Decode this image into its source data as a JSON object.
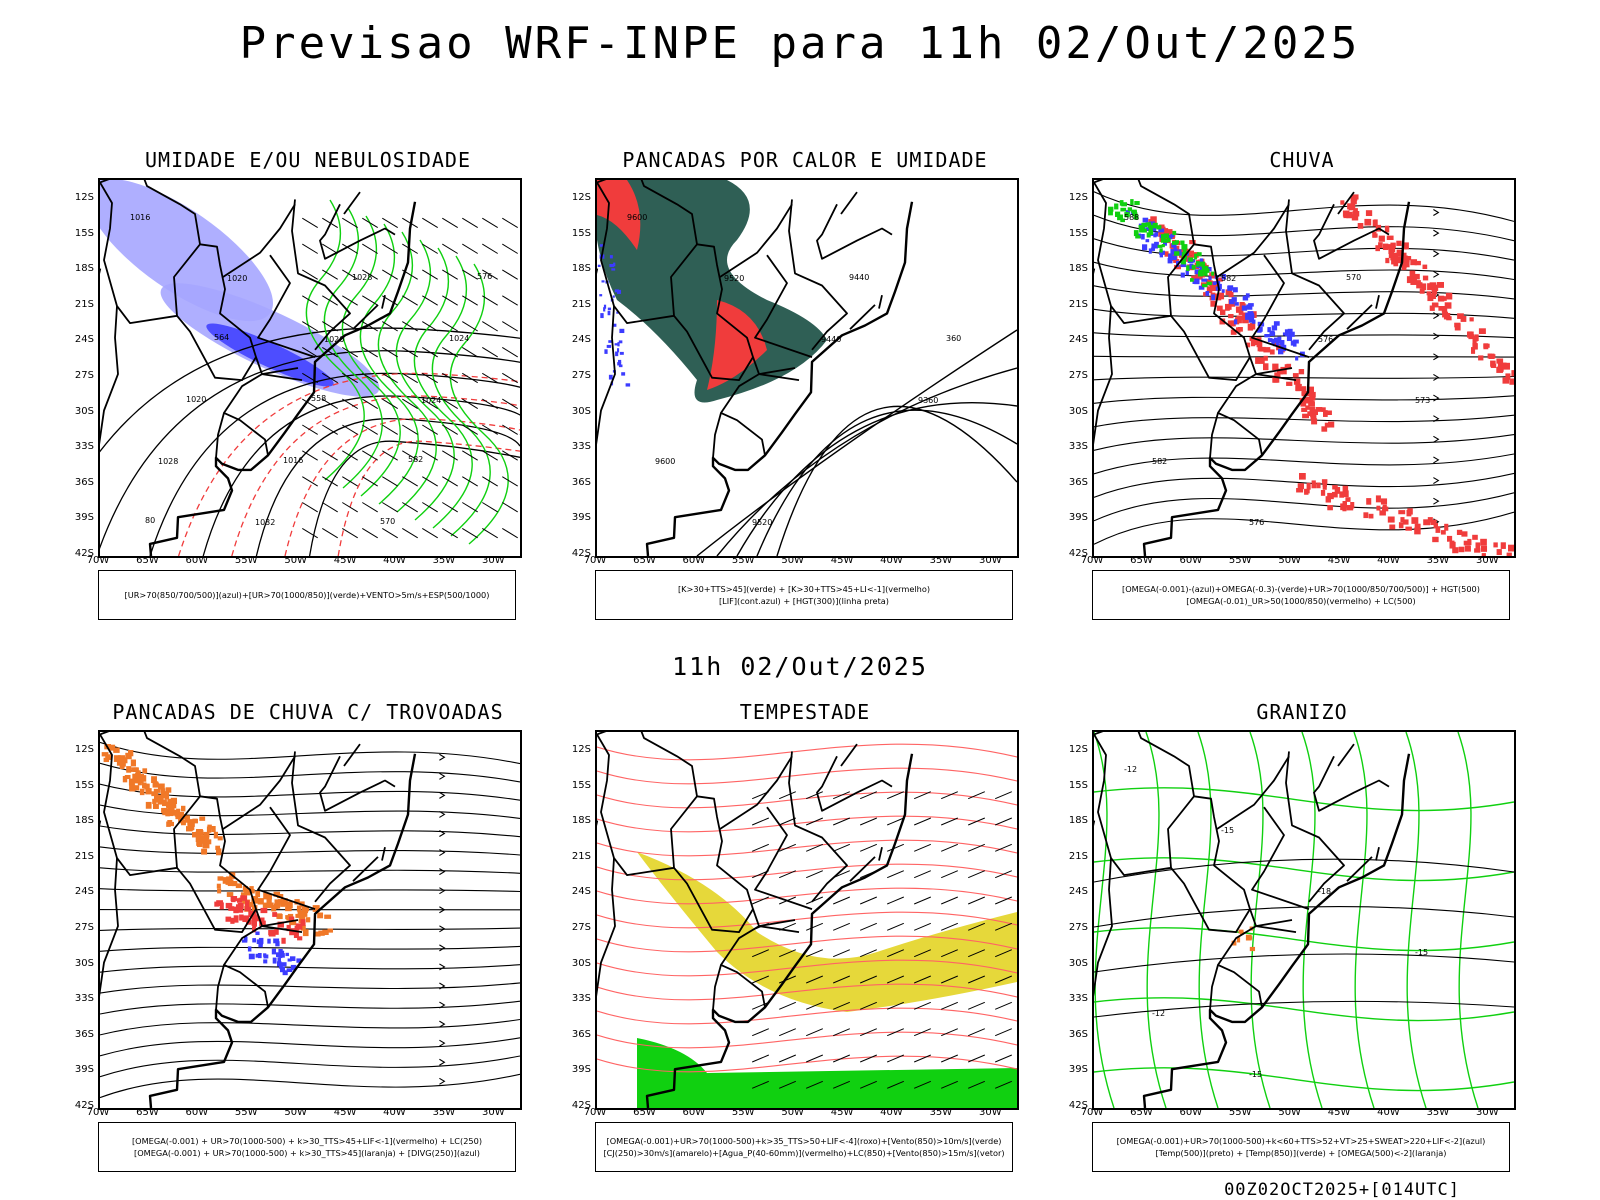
{
  "main_title": "Previsao WRF-INPE  para 11h 02/Out/2025",
  "mid_title": "11h 02/Out/2025",
  "footer": "00Z02OCT2025+[014UTC]",
  "lat_labels": [
    "12S",
    "15S",
    "18S",
    "21S",
    "24S",
    "27S",
    "30S",
    "33S",
    "36S",
    "39S",
    "42S"
  ],
  "lon_labels": [
    "70W",
    "65W",
    "60W",
    "55W",
    "50W",
    "45W",
    "40W",
    "35W",
    "30W"
  ],
  "colors": {
    "red": "#f03c3c",
    "blue": "#3c3cff",
    "green": "#10d010",
    "lightblue": "#a6a6ff",
    "darkteal": "#2f5f55",
    "orange": "#f07828",
    "yellow": "#e6d83a",
    "pink": "#ff6464"
  },
  "chart_data": [
    {
      "type": "map",
      "id": "umidade",
      "title": "UMIDADE E/OU NEBULOSIDADE",
      "legend": [
        "[UR>70(850/700/500)](azul)+[UR>70(1000/850)](verde)+VENTO>5m/s+ESP(500/1000)"
      ],
      "contour_labels": [
        "1016",
        "1020",
        "1020",
        "1024",
        "1028",
        "1032",
        "1028",
        "1024",
        "1020",
        "1016",
        "570",
        "576",
        "564",
        "558",
        "582",
        "80"
      ]
    },
    {
      "type": "map",
      "id": "pancadas-calor",
      "title": "PANCADAS POR CALOR E UMIDADE",
      "legend": [
        "[K>30+TTS>45](verde) + [K>30+TTS>45+LI<-1](vermelho)",
        "[LIF](cont.azul) + [HGT(300)](linha preta)"
      ],
      "contour_labels": [
        "9600",
        "9520",
        "9440",
        "9360",
        "9600",
        "9520",
        "9440",
        "360"
      ]
    },
    {
      "type": "map",
      "id": "chuva",
      "title": "CHUVA",
      "legend": [
        "[OMEGA(-0.001)-(azul)+OMEGA(-0.3)-(verde)+UR>70(1000/850/700/500)] + HGT(500)",
        "[OMEGA(-0.01)_UR>50(1000/850)(vermelho) + LC(500)"
      ],
      "contour_labels": [
        "588",
        "582",
        "576",
        "573",
        "582",
        "576",
        "570"
      ]
    },
    {
      "type": "map",
      "id": "trovoadas",
      "title": "PANCADAS DE CHUVA C/ TROVOADAS",
      "legend": [
        "[OMEGA(-0.001) + UR>70(1000-500) + k>30_TTS>45+LIF<-1](vermelho) + LC(250)",
        "[OMEGA(-0.001) + UR>70(1000-500) + k>30_TTS>45](laranja) + [DIVG(250)](azul)"
      ],
      "contour_labels": []
    },
    {
      "type": "map",
      "id": "tempestade",
      "title": "TEMPESTADE",
      "legend": [
        "[OMEGA(-0.001)+UR>70(1000-500)+k>35_TTS>50+LIF<-4](roxo)+[Vento(850)>10m/s](verde)",
        "[CJ(250)>30m/s](amarelo)+[Agua_P(40-60mm)](vermelho)+LC(850)+[Vento(850)>15m/s](vetor)"
      ],
      "contour_labels": []
    },
    {
      "type": "map",
      "id": "granizo",
      "title": "GRANIZO",
      "legend": [
        "[OMEGA(-0.001)+UR>70(1000-500)+k<60+TTS>52+VT>25+SWEAT>220+LIF<-2](azul)",
        "[Temp(500)](preto) + [Temp(850)](verde) + [OMEGA(500)<-2](laranja)"
      ],
      "contour_labels": [
        "-12",
        "-15",
        "-18",
        "-15",
        "-12",
        "-15"
      ]
    }
  ]
}
